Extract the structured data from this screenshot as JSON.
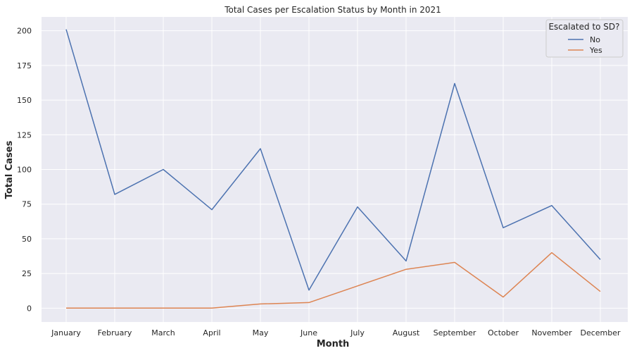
{
  "chart_data": {
    "type": "line",
    "title": "Total Cases per Escalation Status by Month in 2021",
    "xlabel": "Month",
    "ylabel": "Total Cases",
    "categories": [
      "January",
      "February",
      "March",
      "April",
      "May",
      "June",
      "July",
      "August",
      "September",
      "October",
      "November",
      "December"
    ],
    "ylim": [
      -10,
      210
    ],
    "yticks": [
      0,
      25,
      50,
      75,
      100,
      125,
      150,
      175,
      200
    ],
    "grid": true,
    "legend": {
      "title": "Escalated to SD?",
      "placement": "top-right"
    },
    "series": [
      {
        "name": "No",
        "color": "#4c72b0",
        "values": [
          201,
          82,
          100,
          71,
          115,
          13,
          73,
          34,
          162,
          58,
          74,
          35
        ]
      },
      {
        "name": "Yes",
        "color": "#dd8452",
        "values": [
          0,
          0,
          0,
          0,
          3,
          4,
          16,
          28,
          33,
          8,
          40,
          12
        ]
      }
    ]
  }
}
